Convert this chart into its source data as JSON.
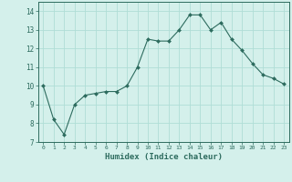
{
  "x": [
    0,
    1,
    2,
    3,
    4,
    5,
    6,
    7,
    8,
    9,
    10,
    11,
    12,
    13,
    14,
    15,
    16,
    17,
    18,
    19,
    20,
    21,
    22,
    23
  ],
  "y": [
    10.0,
    8.2,
    7.4,
    9.0,
    9.5,
    9.6,
    9.7,
    9.7,
    10.0,
    11.0,
    12.5,
    12.4,
    12.4,
    13.0,
    13.8,
    13.8,
    13.0,
    13.4,
    12.5,
    11.9,
    11.2,
    10.6,
    10.4,
    10.1
  ],
  "xlabel": "Humidex (Indice chaleur)",
  "xlim": [
    -0.5,
    23.5
  ],
  "ylim": [
    7,
    14.5
  ],
  "yticks": [
    7,
    8,
    9,
    10,
    11,
    12,
    13,
    14
  ],
  "xticks": [
    0,
    1,
    2,
    3,
    4,
    5,
    6,
    7,
    8,
    9,
    10,
    11,
    12,
    13,
    14,
    15,
    16,
    17,
    18,
    19,
    20,
    21,
    22,
    23
  ],
  "line_color": "#2d6b5e",
  "marker": "D",
  "marker_size": 2.0,
  "bg_color": "#d4f0eb",
  "grid_color": "#b0ddd6",
  "tick_color": "#2d6b5e",
  "label_color": "#2d6b5e",
  "spine_color": "#2d6b5e"
}
